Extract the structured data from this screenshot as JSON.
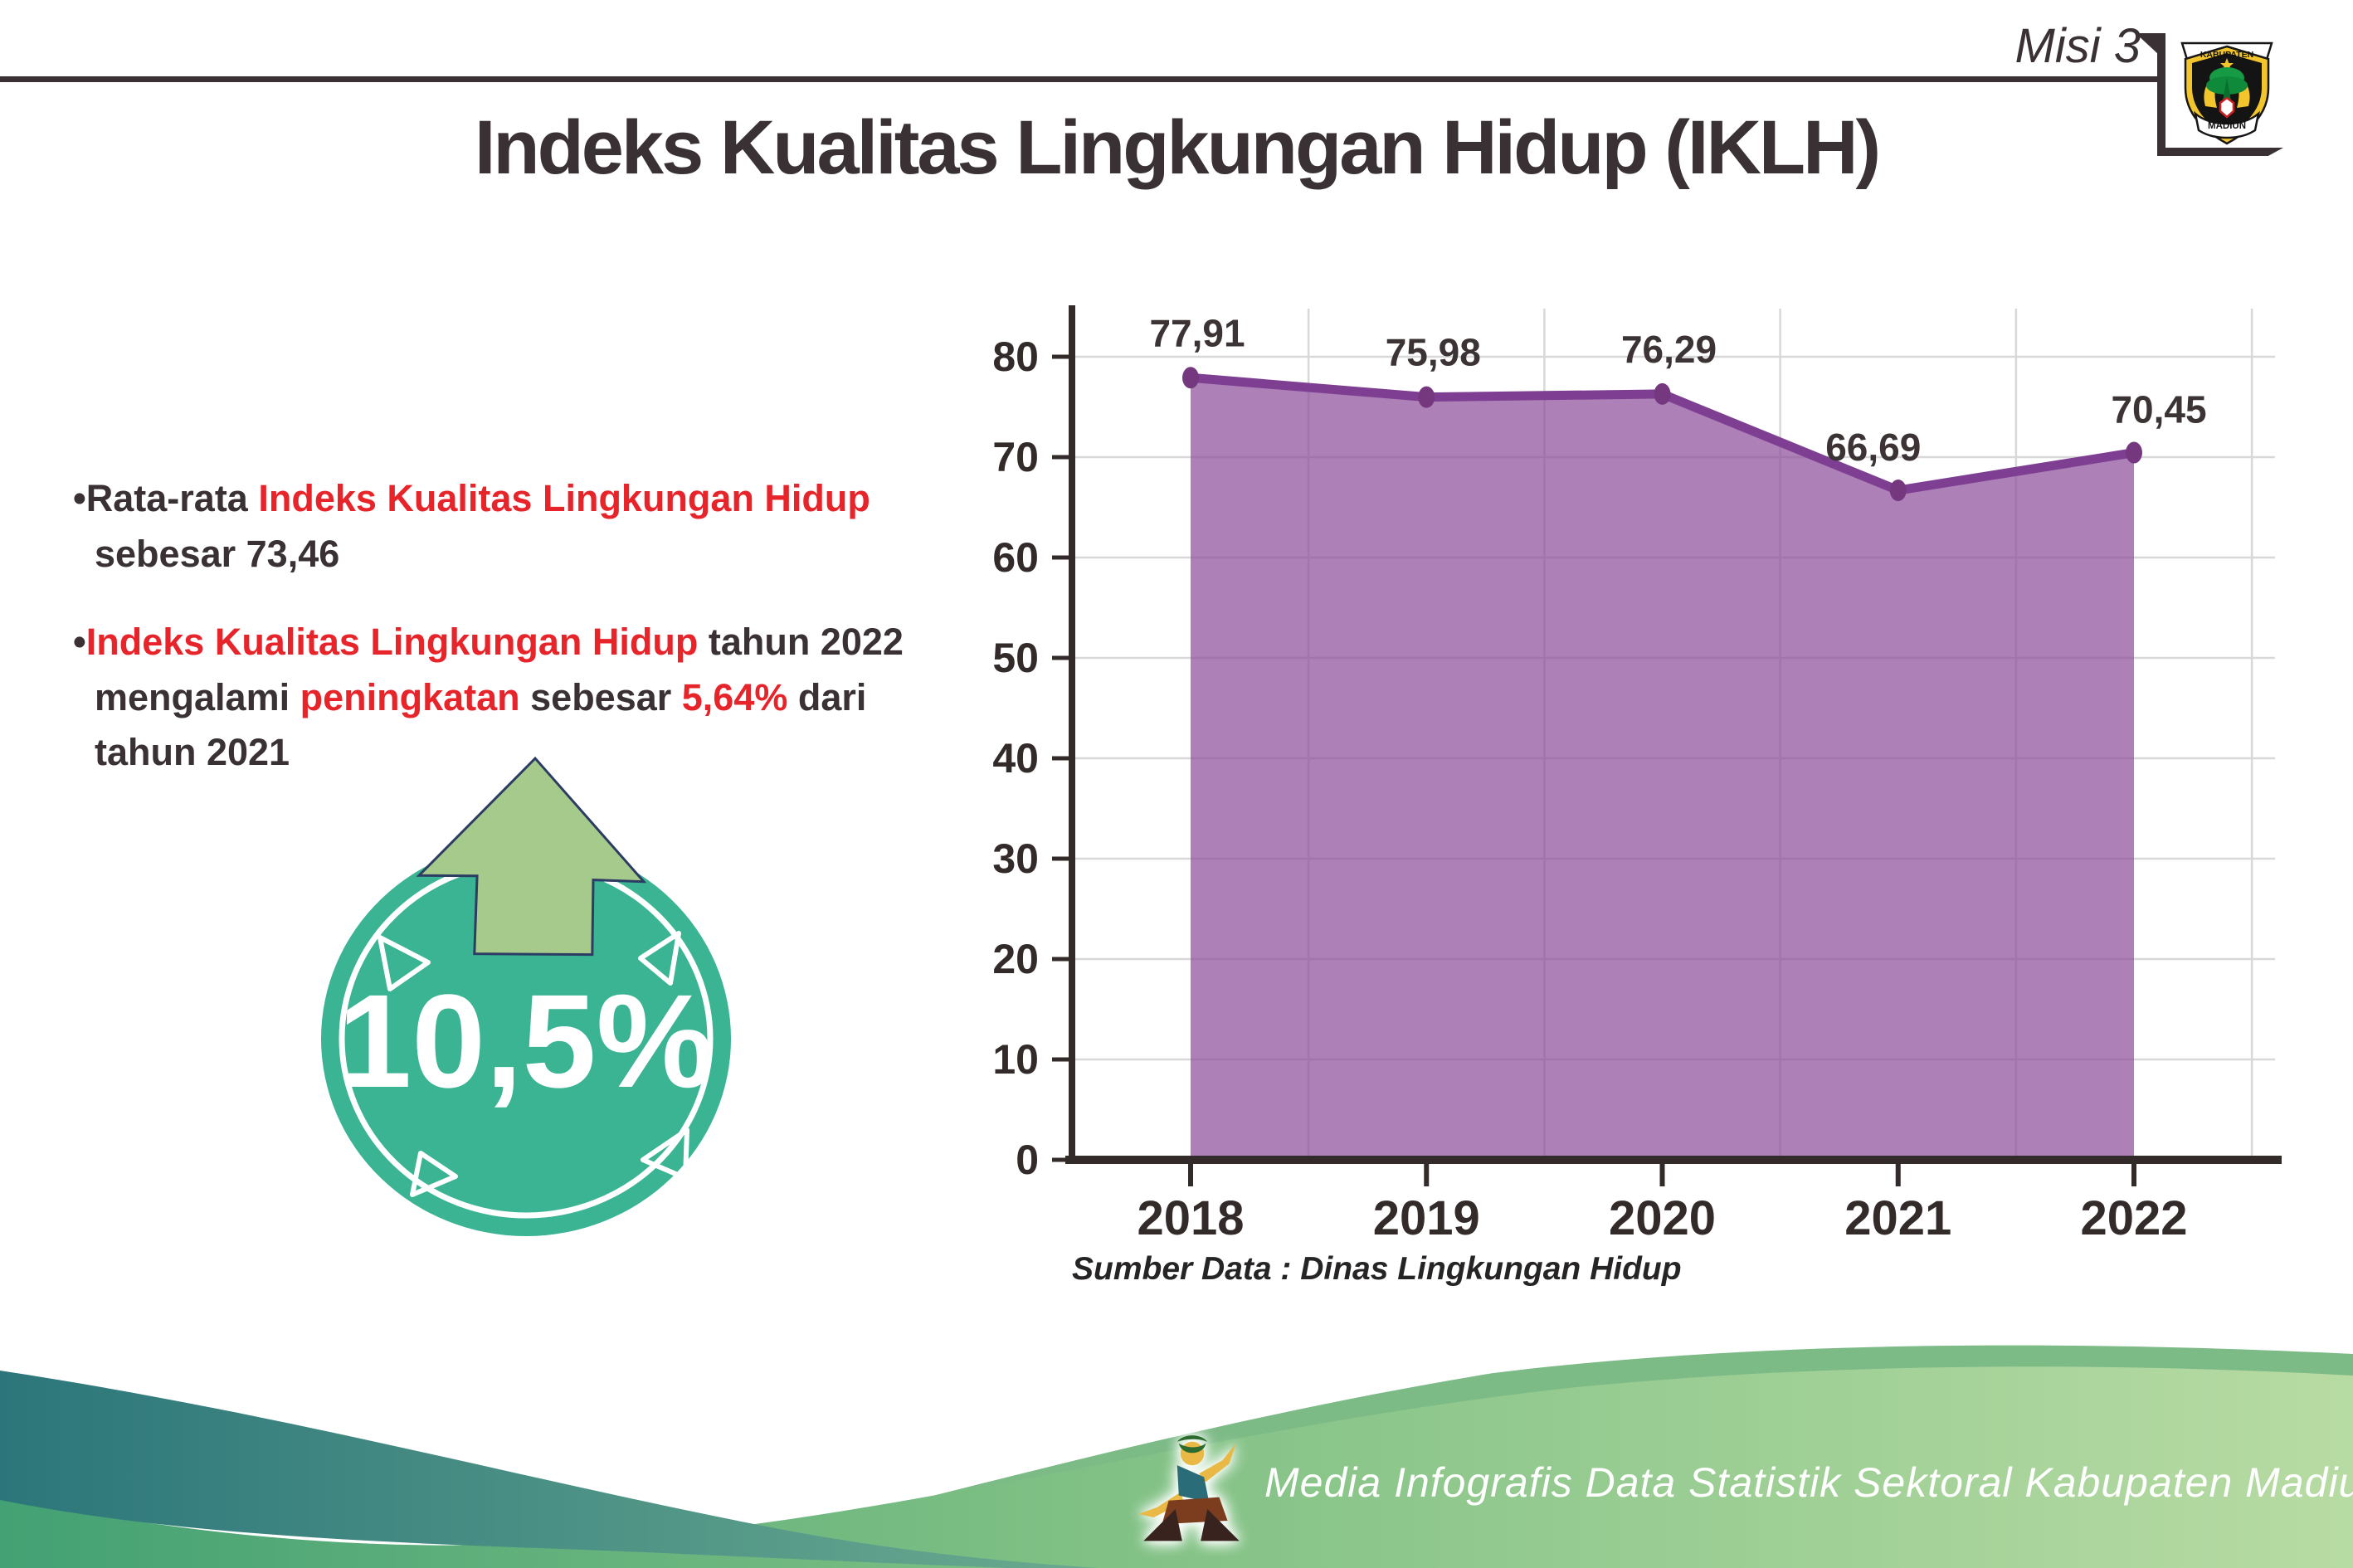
{
  "header": {
    "misi": "Misi 3",
    "logo": {
      "top": "KABUPATEN",
      "bottom": "MADIUN"
    }
  },
  "title": "Indeks Kualitas Lingkungan Hidup (IKLH)",
  "bullets": {
    "b1": {
      "marker": "•",
      "s1": "Rata-rata ",
      "s2": "Indeks Kualitas Lingkungan Hidup",
      "s3": " sebesar 73,46"
    },
    "b2": {
      "marker": "•",
      "s1": "Indeks Kualitas Lingkungan Hidup",
      "s2": " tahun 2022 mengalami ",
      "s3": "peningkatan",
      "s4": " sebesar ",
      "s5": "5,64%",
      "s6": " dari tahun 2021"
    }
  },
  "badge": {
    "value": "10,5%"
  },
  "chart_data": {
    "type": "area",
    "categories": [
      "2018",
      "2019",
      "2020",
      "2021",
      "2022"
    ],
    "values": [
      77.91,
      75.98,
      76.29,
      66.69,
      70.45
    ],
    "value_labels": [
      "77,91",
      "75,98",
      "76,29",
      "66,69",
      "70,45"
    ],
    "ylim": [
      0,
      80
    ],
    "yticks": [
      0,
      10,
      20,
      30,
      40,
      50,
      60,
      70,
      80
    ],
    "grid": true,
    "legend_position": "none",
    "line_color": "#7e3f92",
    "marker_color": "#75387f",
    "fill_color": "#8e4f9b",
    "source": "Sumber Data : Dinas Lingkungan Hidup"
  },
  "footer": {
    "text": "Media Infografis Data Statistik Sektoral Kabupaten Madiun |"
  },
  "colors": {
    "accent_red": "#e8242b",
    "badge_teal": "#3ab493",
    "arrow_green": "#a5ca8c",
    "dark_text": "#3a3134",
    "footer_teal": "#2c767b",
    "footer_green_light": "#b7dba3"
  }
}
